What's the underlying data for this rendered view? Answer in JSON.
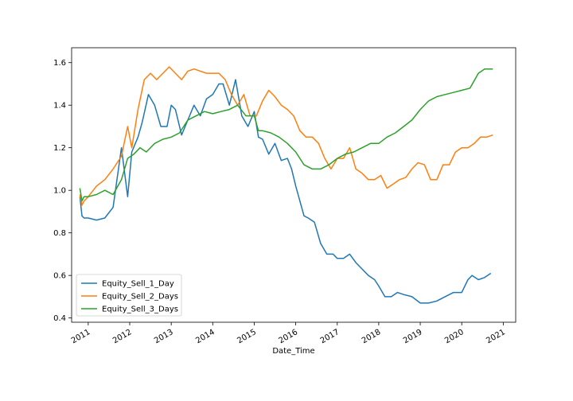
{
  "chart_data": {
    "type": "line",
    "xlabel": "Date_Time",
    "ylabel": "",
    "xlim": [
      2010.6,
      2021.3
    ],
    "ylim": [
      0.38,
      1.67
    ],
    "x_ticks": [
      "2011",
      "2012",
      "2013",
      "2014",
      "2015",
      "2016",
      "2017",
      "2018",
      "2019",
      "2020",
      "2021"
    ],
    "y_ticks": [
      "0.4",
      "0.6",
      "0.8",
      "1.0",
      "1.2",
      "1.4",
      "1.6"
    ],
    "grid": false,
    "legend_position": "lower-left",
    "series": [
      {
        "name": "Equity_Sell_1_Day",
        "color": "#1f77b4",
        "x": [
          2010.8,
          2010.85,
          2010.9,
          2011.0,
          2011.2,
          2011.4,
          2011.6,
          2011.8,
          2011.95,
          2012.05,
          2012.2,
          2012.3,
          2012.45,
          2012.6,
          2012.75,
          2012.9,
          2013.0,
          2013.1,
          2013.25,
          2013.4,
          2013.55,
          2013.7,
          2013.85,
          2014.0,
          2014.15,
          2014.25,
          2014.4,
          2014.55,
          2014.7,
          2014.85,
          2015.0,
          2015.1,
          2015.2,
          2015.35,
          2015.5,
          2015.65,
          2015.8,
          2015.9,
          2016.0,
          2016.1,
          2016.2,
          2016.3,
          2016.45,
          2016.6,
          2016.75,
          2016.9,
          2017.0,
          2017.15,
          2017.3,
          2017.45,
          2017.6,
          2017.75,
          2017.9,
          2018.0,
          2018.15,
          2018.3,
          2018.45,
          2018.6,
          2018.8,
          2019.0,
          2019.2,
          2019.4,
          2019.6,
          2019.8,
          2020.0,
          2020.15,
          2020.25,
          2020.4,
          2020.55,
          2020.7
        ],
        "values": [
          0.97,
          0.88,
          0.87,
          0.87,
          0.86,
          0.87,
          0.92,
          1.2,
          0.97,
          1.18,
          1.25,
          1.32,
          1.45,
          1.4,
          1.3,
          1.3,
          1.4,
          1.38,
          1.26,
          1.33,
          1.4,
          1.35,
          1.43,
          1.45,
          1.5,
          1.5,
          1.4,
          1.52,
          1.35,
          1.3,
          1.37,
          1.25,
          1.24,
          1.17,
          1.22,
          1.14,
          1.15,
          1.1,
          1.02,
          0.95,
          0.88,
          0.87,
          0.85,
          0.75,
          0.7,
          0.7,
          0.68,
          0.68,
          0.7,
          0.66,
          0.63,
          0.6,
          0.58,
          0.55,
          0.5,
          0.5,
          0.52,
          0.51,
          0.5,
          0.47,
          0.47,
          0.48,
          0.5,
          0.52,
          0.52,
          0.58,
          0.6,
          0.58,
          0.59,
          0.61
        ]
      },
      {
        "name": "Equity_Sell_2_Days",
        "color": "#ff7f0e",
        "x": [
          2010.8,
          2010.85,
          2010.9,
          2011.0,
          2011.2,
          2011.4,
          2011.6,
          2011.8,
          2011.95,
          2012.05,
          2012.2,
          2012.35,
          2012.5,
          2012.65,
          2012.8,
          2012.95,
          2013.1,
          2013.25,
          2013.4,
          2013.55,
          2013.7,
          2013.85,
          2014.0,
          2014.15,
          2014.3,
          2014.45,
          2014.6,
          2014.75,
          2014.9,
          2015.05,
          2015.2,
          2015.35,
          2015.5,
          2015.65,
          2015.8,
          2015.95,
          2016.1,
          2016.25,
          2016.4,
          2016.55,
          2016.7,
          2016.85,
          2017.0,
          2017.15,
          2017.3,
          2017.45,
          2017.6,
          2017.75,
          2017.9,
          2018.05,
          2018.2,
          2018.35,
          2018.5,
          2018.65,
          2018.8,
          2018.95,
          2019.1,
          2019.25,
          2019.4,
          2019.55,
          2019.7,
          2019.85,
          2020.0,
          2020.15,
          2020.3,
          2020.45,
          2020.6,
          2020.75
        ],
        "values": [
          0.98,
          0.93,
          0.95,
          0.97,
          1.02,
          1.05,
          1.1,
          1.16,
          1.3,
          1.2,
          1.38,
          1.52,
          1.55,
          1.52,
          1.55,
          1.58,
          1.55,
          1.52,
          1.56,
          1.57,
          1.56,
          1.55,
          1.55,
          1.55,
          1.52,
          1.45,
          1.4,
          1.45,
          1.35,
          1.35,
          1.42,
          1.47,
          1.44,
          1.4,
          1.38,
          1.35,
          1.28,
          1.25,
          1.25,
          1.22,
          1.15,
          1.1,
          1.15,
          1.15,
          1.2,
          1.1,
          1.08,
          1.05,
          1.05,
          1.07,
          1.01,
          1.03,
          1.05,
          1.06,
          1.1,
          1.13,
          1.12,
          1.05,
          1.05,
          1.12,
          1.12,
          1.18,
          1.2,
          1.2,
          1.22,
          1.25,
          1.25,
          1.26
        ]
      },
      {
        "name": "Equity_Sell_3_Days",
        "color": "#2ca02c",
        "x": [
          2010.8,
          2010.85,
          2010.9,
          2011.0,
          2011.2,
          2011.4,
          2011.6,
          2011.8,
          2011.95,
          2012.1,
          2012.25,
          2012.4,
          2012.6,
          2012.8,
          2013.0,
          2013.2,
          2013.4,
          2013.6,
          2013.8,
          2014.0,
          2014.2,
          2014.4,
          2014.6,
          2014.8,
          2015.0,
          2015.1,
          2015.2,
          2015.4,
          2015.6,
          2015.8,
          2016.0,
          2016.2,
          2016.4,
          2016.6,
          2016.8,
          2017.0,
          2017.2,
          2017.4,
          2017.6,
          2017.8,
          2018.0,
          2018.2,
          2018.4,
          2018.6,
          2018.8,
          2019.0,
          2019.2,
          2019.4,
          2019.6,
          2019.8,
          2020.0,
          2020.2,
          2020.4,
          2020.55,
          2020.75
        ],
        "values": [
          1.01,
          0.95,
          0.97,
          0.97,
          0.98,
          1.0,
          0.98,
          1.05,
          1.15,
          1.17,
          1.2,
          1.18,
          1.22,
          1.24,
          1.25,
          1.27,
          1.33,
          1.35,
          1.37,
          1.36,
          1.37,
          1.38,
          1.4,
          1.35,
          1.35,
          1.28,
          1.28,
          1.27,
          1.25,
          1.22,
          1.18,
          1.12,
          1.1,
          1.1,
          1.12,
          1.15,
          1.17,
          1.18,
          1.2,
          1.22,
          1.22,
          1.25,
          1.27,
          1.3,
          1.33,
          1.38,
          1.42,
          1.44,
          1.45,
          1.46,
          1.47,
          1.48,
          1.55,
          1.57,
          1.57
        ]
      }
    ]
  }
}
